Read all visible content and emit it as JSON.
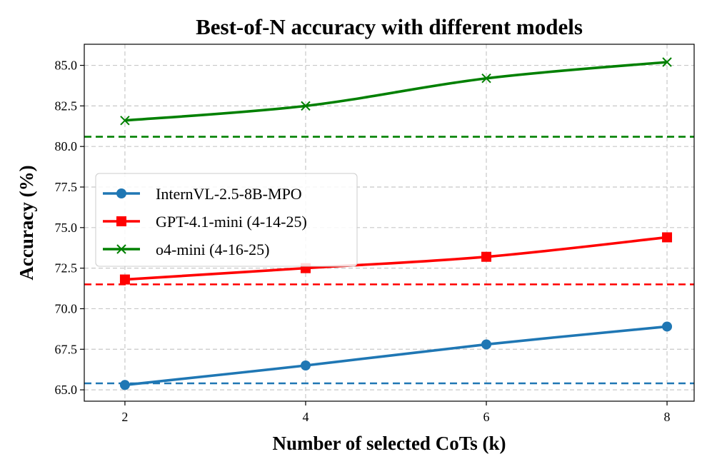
{
  "chart_data": {
    "type": "line",
    "title": "Best-of-N accuracy with different models",
    "xlabel": "Number of selected CoTs (k)",
    "ylabel": "Accuracy (%)",
    "x": [
      2,
      4,
      6,
      8
    ],
    "x_tick_labels": [
      "2",
      "4",
      "6",
      "8"
    ],
    "xlim": [
      1.55,
      8.3
    ],
    "ylim": [
      64.3,
      86.3
    ],
    "y_ticks": [
      65.0,
      67.5,
      70.0,
      72.5,
      75.0,
      77.5,
      80.0,
      82.5,
      85.0
    ],
    "y_tick_labels": [
      "65.0",
      "67.5",
      "70.0",
      "72.5",
      "75.0",
      "77.5",
      "80.0",
      "82.5",
      "85.0"
    ],
    "grid": true,
    "legend_position": "center-left",
    "series": [
      {
        "name": "InternVL-2.5-8B-MPO",
        "values": [
          65.3,
          66.5,
          67.8,
          68.9
        ],
        "color": "#1f77b4",
        "marker": "circle",
        "baseline": 65.4
      },
      {
        "name": "GPT-4.1-mini (4-14-25)",
        "values": [
          71.8,
          72.5,
          73.2,
          74.4
        ],
        "color": "#ff0000",
        "marker": "square",
        "baseline": 71.5
      },
      {
        "name": "o4-mini (4-16-25)",
        "values": [
          81.6,
          82.5,
          84.2,
          85.2
        ],
        "color": "#008000",
        "marker": "x",
        "baseline": 80.6
      }
    ]
  }
}
